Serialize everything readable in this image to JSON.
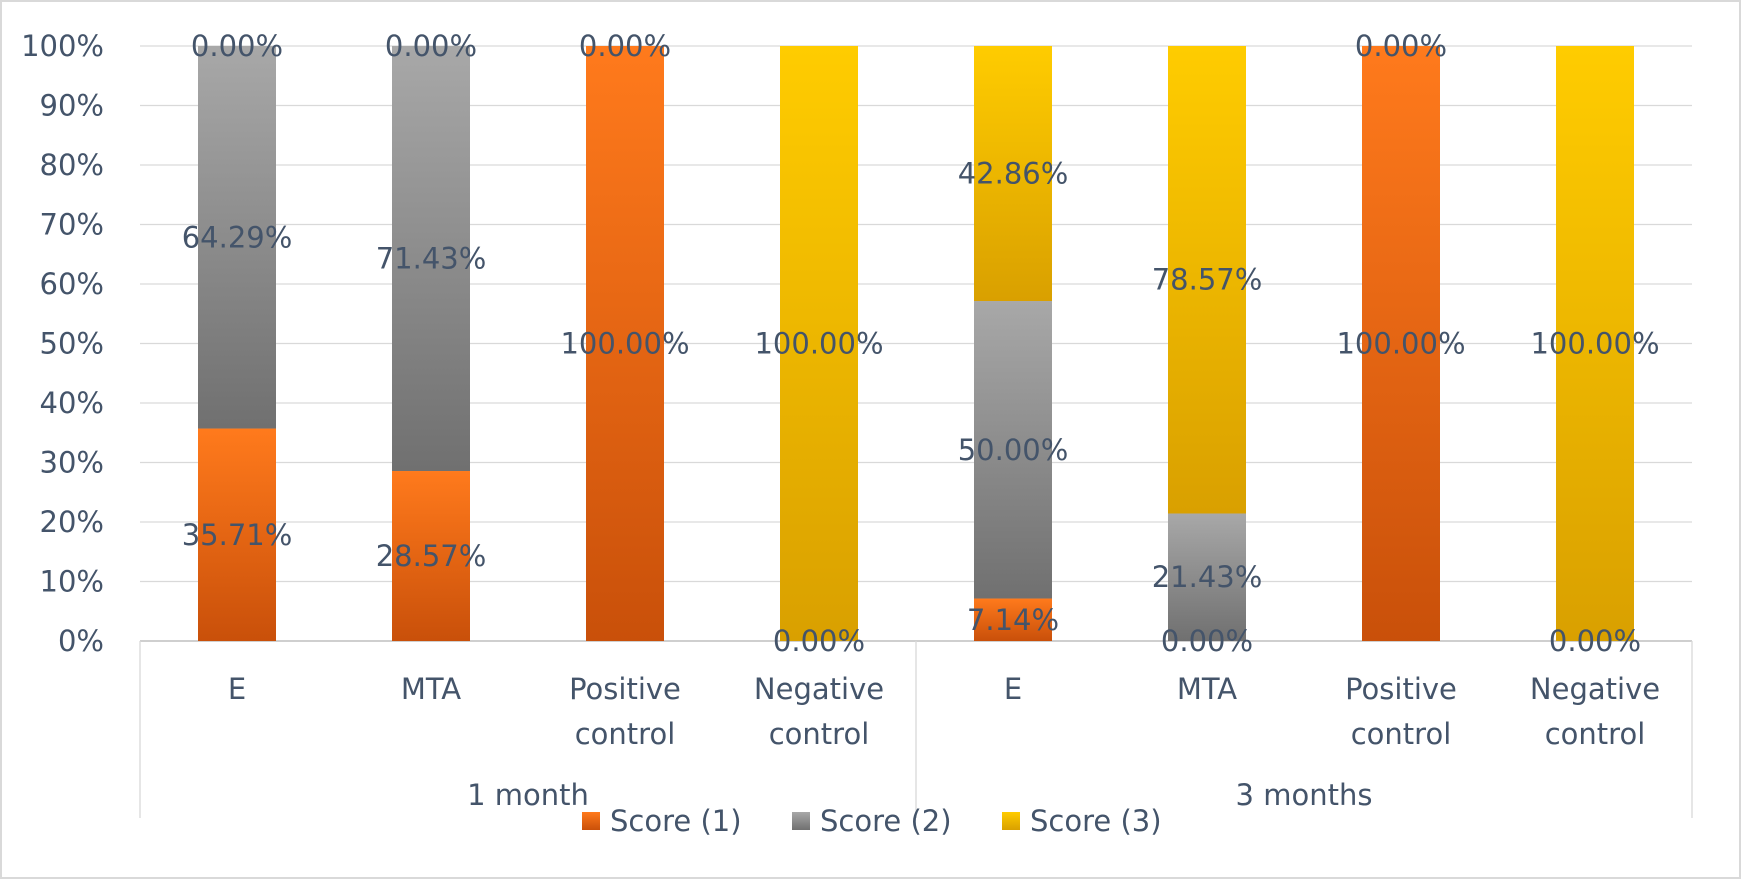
{
  "chart_data": {
    "type": "bar",
    "stacked": true,
    "normalized_percent": true,
    "title": "",
    "xlabel": "",
    "ylabel": "",
    "ylim": [
      0,
      100
    ],
    "y_ticks": [
      "0%",
      "10%",
      "20%",
      "30%",
      "40%",
      "50%",
      "60%",
      "70%",
      "80%",
      "90%",
      "100%"
    ],
    "grid": true,
    "legend_position": "bottom",
    "groups": [
      {
        "label": "1 month",
        "categories": [
          "E",
          "MTA",
          "Positive control",
          "Negative control"
        ]
      },
      {
        "label": "3 months",
        "categories": [
          "E",
          "MTA",
          "Positive control",
          "Negative control"
        ]
      }
    ],
    "category_lines": [
      [
        "E"
      ],
      [
        "MTA"
      ],
      [
        "Positive",
        "control"
      ],
      [
        "Negative",
        "control"
      ],
      [
        "E"
      ],
      [
        "MTA"
      ],
      [
        "Positive",
        "control"
      ],
      [
        "Negative",
        "control"
      ]
    ],
    "series": [
      {
        "name": "Score (1)",
        "color": "#e2600f",
        "values": [
          35.71,
          28.57,
          100,
          0,
          7.14,
          0,
          100,
          0
        ],
        "labels": [
          "35.71%",
          "28.57%",
          "100.00%",
          "0.00%",
          "7.14%",
          "0.00%",
          "100.00%",
          "0.00%"
        ]
      },
      {
        "name": "Score (2)",
        "color": "#8c8c8c",
        "values": [
          64.29,
          71.43,
          0,
          0,
          50.0,
          21.43,
          0,
          0
        ],
        "labels": [
          "64.29%",
          "71.43%",
          "",
          "",
          "50.00%",
          "21.43%",
          "",
          ""
        ]
      },
      {
        "name": "Score (3)",
        "color": "#e6b000",
        "values": [
          0,
          0,
          0,
          100,
          42.86,
          78.57,
          0,
          100
        ],
        "labels": [
          "0.00%",
          "0.00%",
          "0.00%",
          "100.00%",
          "42.86%",
          "78.57%",
          "0.00%",
          "100.00%"
        ]
      }
    ]
  }
}
